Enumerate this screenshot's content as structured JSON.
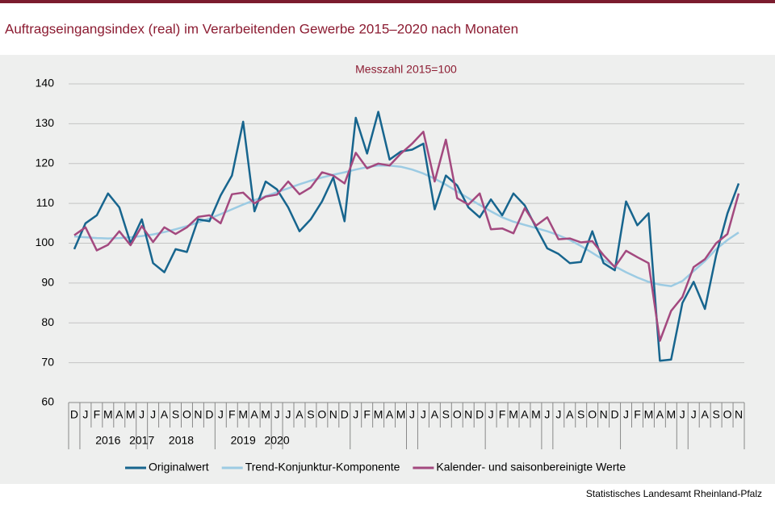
{
  "chart_data": {
    "type": "line",
    "title": "Auftragseingangsindex (real) im Verarbeitenden Gewerbe 2015–2020 nach Monaten",
    "subtitle": "Messzahl 2015=100",
    "source": "Statistisches Landesamt Rheinland-Pfalz",
    "categories": [
      "D",
      "J",
      "F",
      "M",
      "A",
      "M",
      "J",
      "J",
      "A",
      "S",
      "O",
      "N",
      "D",
      "J",
      "F",
      "M",
      "A",
      "M",
      "J",
      "J",
      "A",
      "S",
      "O",
      "N",
      "D",
      "J",
      "F",
      "M",
      "A",
      "M",
      "J",
      "J",
      "A",
      "S",
      "O",
      "N",
      "D",
      "J",
      "F",
      "M",
      "A",
      "M",
      "J",
      "J",
      "A",
      "S",
      "O",
      "N",
      "D",
      "J",
      "F",
      "M",
      "A",
      "M",
      "J",
      "J",
      "A",
      "S",
      "O",
      "N"
    ],
    "years": [
      "2016",
      "2017",
      "2018",
      "2019",
      "2020"
    ],
    "ylim": [
      60,
      140
    ],
    "yticks": [
      60,
      70,
      80,
      90,
      100,
      110,
      120,
      130,
      140
    ],
    "grid": true,
    "series": [
      {
        "name": "Originalwert",
        "color": "#17658e",
        "values": [
          98.5,
          105,
          107,
          112.5,
          109,
          100,
          106,
          95,
          92.7,
          98.5,
          97.8,
          106,
          105.5,
          112,
          117,
          130.5,
          108,
          115.5,
          113.5,
          109,
          103,
          106,
          110.5,
          116.5,
          105.5,
          131.5,
          122.5,
          133,
          121,
          123,
          123.5,
          125,
          108.5,
          117,
          114.5,
          109,
          106.5,
          111,
          107,
          112.5,
          109.5,
          104,
          98.7,
          97.3,
          95,
          95.3,
          103,
          95,
          93.2,
          110.5,
          104.5,
          107.5,
          70.5,
          70.8,
          85,
          90.3,
          83.5,
          97,
          107.5,
          115
        ]
      },
      {
        "name": "Trend-Konjunktur-Komponente",
        "color": "#9ccbe3",
        "values": [
          101.7,
          101.5,
          101.3,
          101.2,
          101.3,
          101.5,
          101.8,
          102.2,
          102.8,
          103.5,
          104.3,
          105.2,
          106.2,
          107.3,
          108.5,
          109.7,
          110.8,
          111.8,
          112.8,
          113.8,
          114.8,
          115.7,
          116.5,
          117.2,
          117.8,
          118.5,
          119.1,
          119.5,
          119.5,
          119.2,
          118.5,
          117.5,
          116.2,
          114.7,
          113,
          111.3,
          109.6,
          108,
          106.5,
          105.4,
          104.6,
          103.8,
          103,
          102,
          100.8,
          99.3,
          97.6,
          95.8,
          94.2,
          92.7,
          91.4,
          90.3,
          89.6,
          89.2,
          90.5,
          93,
          95.5,
          98.5,
          100.8,
          102.7
        ]
      },
      {
        "name": "Kalender- und saisonbereinigte Werte",
        "color": "#a3497f",
        "values": [
          102,
          104,
          98.2,
          99.6,
          103,
          99.5,
          104.3,
          100.3,
          104,
          102.3,
          104,
          106.6,
          107,
          105,
          112.3,
          112.7,
          110,
          111.7,
          112.2,
          115.5,
          112.3,
          114,
          117.8,
          117,
          115,
          122.7,
          118.8,
          120,
          119.5,
          122.5,
          125,
          128,
          115.5,
          126,
          111.3,
          109.7,
          112.5,
          103.5,
          103.7,
          102.5,
          108.8,
          104.4,
          106.5,
          101,
          101.2,
          100.2,
          100.5,
          97,
          94,
          98.1,
          96.5,
          95,
          75.5,
          83,
          86.5,
          94,
          96,
          100,
          102.3,
          112.5
        ]
      }
    ]
  }
}
